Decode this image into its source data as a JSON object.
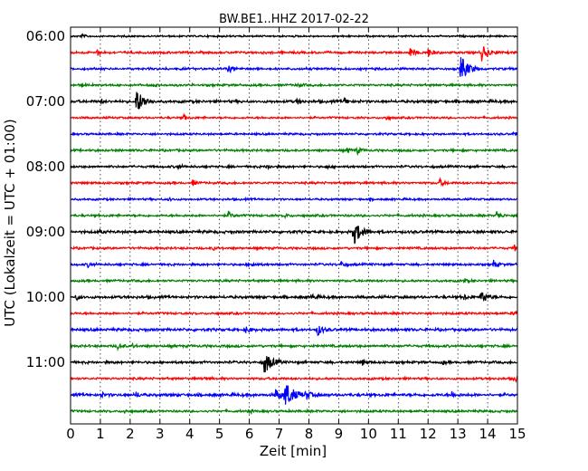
{
  "chart_data": {
    "type": "line",
    "title": "BW.BE1..HHZ 2017-02-22",
    "xlabel": "Zeit  [min]",
    "ylabel": "UTC (Lokalzeit = UTC + 01:00)",
    "xlim": [
      0,
      15
    ],
    "x_ticks": [
      "0",
      "1",
      "2",
      "3",
      "4",
      "5",
      "6",
      "7",
      "8",
      "9",
      "10",
      "11",
      "12",
      "13",
      "14",
      "15"
    ],
    "y_tick_labels": [
      "06:00",
      "07:00",
      "08:00",
      "09:00",
      "10:00",
      "11:00"
    ],
    "grid": true,
    "colors": [
      "#000000",
      "#ff0000",
      "#0000ff",
      "#008000"
    ],
    "traces": [
      {
        "time": "06:00",
        "color": "#000000",
        "noise": 0.8,
        "events": [
          {
            "t": 0.4,
            "a": 2
          }
        ]
      },
      {
        "time": "06:15",
        "color": "#ff0000",
        "noise": 1.0,
        "events": [
          {
            "t": 0.9,
            "a": 3
          },
          {
            "t": 11.4,
            "a": 6
          },
          {
            "t": 12.0,
            "a": 5
          },
          {
            "t": 13.8,
            "a": 9
          }
        ]
      },
      {
        "time": "06:30",
        "color": "#0000ff",
        "noise": 1.0,
        "events": [
          {
            "t": 5.3,
            "a": 4
          },
          {
            "t": 13.1,
            "a": 14
          }
        ]
      },
      {
        "time": "06:45",
        "color": "#008000",
        "noise": 1.0,
        "events": [
          {
            "t": 0.4,
            "a": 2
          },
          {
            "t": 2.8,
            "a": 2
          },
          {
            "t": 7.6,
            "a": 3
          }
        ]
      },
      {
        "time": "07:00",
        "color": "#000000",
        "noise": 1.2,
        "events": [
          {
            "t": 1.0,
            "a": 2
          },
          {
            "t": 2.2,
            "a": 14
          },
          {
            "t": 7.6,
            "a": 3
          },
          {
            "t": 9.2,
            "a": 4
          }
        ]
      },
      {
        "time": "07:15",
        "color": "#ff0000",
        "noise": 0.9,
        "events": [
          {
            "t": 3.8,
            "a": 3
          },
          {
            "t": 10.6,
            "a": 2
          }
        ]
      },
      {
        "time": "07:30",
        "color": "#0000ff",
        "noise": 0.9,
        "events": [
          {
            "t": 14.9,
            "a": 3
          }
        ]
      },
      {
        "time": "07:45",
        "color": "#008000",
        "noise": 1.0,
        "events": [
          {
            "t": 9.3,
            "a": 3
          },
          {
            "t": 9.6,
            "a": 4
          }
        ]
      },
      {
        "time": "08:00",
        "color": "#000000",
        "noise": 1.0,
        "events": [
          {
            "t": 3.6,
            "a": 3
          },
          {
            "t": 6.6,
            "a": 3
          },
          {
            "t": 8.6,
            "a": 2
          }
        ]
      },
      {
        "time": "08:15",
        "color": "#ff0000",
        "noise": 1.0,
        "events": [
          {
            "t": 4.1,
            "a": 3
          },
          {
            "t": 12.4,
            "a": 4
          }
        ]
      },
      {
        "time": "08:30",
        "color": "#0000ff",
        "noise": 0.9,
        "events": [
          {
            "t": 3.3,
            "a": 2
          }
        ]
      },
      {
        "time": "08:45",
        "color": "#008000",
        "noise": 1.0,
        "events": [
          {
            "t": 5.3,
            "a": 4
          },
          {
            "t": 7.2,
            "a": 2
          },
          {
            "t": 14.3,
            "a": 5
          }
        ]
      },
      {
        "time": "09:00",
        "color": "#000000",
        "noise": 1.2,
        "events": [
          {
            "t": 1.0,
            "a": 2
          },
          {
            "t": 9.5,
            "a": 14
          }
        ]
      },
      {
        "time": "09:15",
        "color": "#ff0000",
        "noise": 1.0,
        "events": [
          {
            "t": 4.8,
            "a": 2
          },
          {
            "t": 14.9,
            "a": 3
          }
        ]
      },
      {
        "time": "09:30",
        "color": "#0000ff",
        "noise": 1.0,
        "events": [
          {
            "t": 0.6,
            "a": 3
          },
          {
            "t": 6.1,
            "a": 3
          },
          {
            "t": 9.1,
            "a": 3
          },
          {
            "t": 14.2,
            "a": 4
          }
        ]
      },
      {
        "time": "09:45",
        "color": "#008000",
        "noise": 1.0,
        "events": [
          {
            "t": 13.2,
            "a": 2
          }
        ]
      },
      {
        "time": "10:00",
        "color": "#000000",
        "noise": 1.2,
        "events": [
          {
            "t": 0.2,
            "a": 3
          },
          {
            "t": 8.1,
            "a": 3
          },
          {
            "t": 13.2,
            "a": 3
          },
          {
            "t": 13.8,
            "a": 8
          }
        ]
      },
      {
        "time": "10:15",
        "color": "#ff0000",
        "noise": 1.0,
        "events": [
          {
            "t": 14.9,
            "a": 3
          }
        ]
      },
      {
        "time": "10:30",
        "color": "#0000ff",
        "noise": 1.2,
        "events": [
          {
            "t": 5.9,
            "a": 4
          },
          {
            "t": 8.3,
            "a": 6
          }
        ]
      },
      {
        "time": "10:45",
        "color": "#008000",
        "noise": 1.1,
        "events": [
          {
            "t": 1.6,
            "a": 4
          },
          {
            "t": 2.1,
            "a": 2
          }
        ]
      },
      {
        "time": "11:00",
        "color": "#000000",
        "noise": 1.1,
        "events": [
          {
            "t": 6.5,
            "a": 13
          },
          {
            "t": 9.8,
            "a": 3
          },
          {
            "t": 12.5,
            "a": 2
          }
        ]
      },
      {
        "time": "11:15",
        "color": "#ff0000",
        "noise": 1.0,
        "events": [
          {
            "t": 4.5,
            "a": 2
          },
          {
            "t": 14.9,
            "a": 3
          }
        ]
      },
      {
        "time": "11:30",
        "color": "#0000ff",
        "noise": 1.3,
        "events": [
          {
            "t": 1.0,
            "a": 3
          },
          {
            "t": 2.2,
            "a": 3
          },
          {
            "t": 6.9,
            "a": 7
          },
          {
            "t": 7.2,
            "a": 15
          },
          {
            "t": 7.9,
            "a": 6
          },
          {
            "t": 12.8,
            "a": 3
          }
        ]
      },
      {
        "time": "11:45",
        "color": "#008000",
        "noise": 1.0,
        "events": [
          {
            "t": 1.8,
            "a": 2
          },
          {
            "t": 6.0,
            "a": 2
          }
        ]
      }
    ]
  }
}
